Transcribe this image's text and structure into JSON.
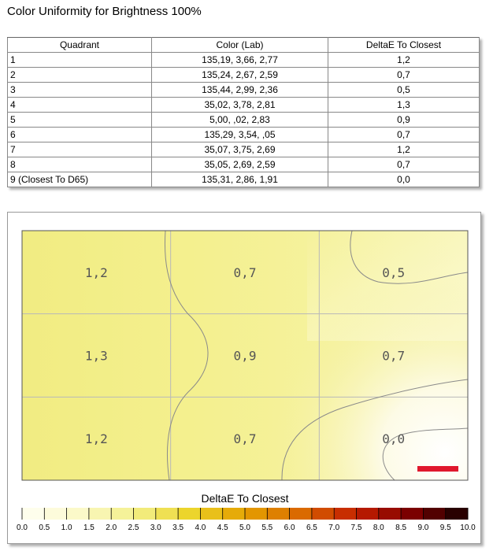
{
  "page_title": "Color Uniformity for Brightness 100%",
  "table": {
    "headers": [
      "Quadrant",
      "Color (Lab)",
      "DeltaE To Closest"
    ],
    "rows": [
      [
        "1",
        "135,19,   3,66,   2,77",
        "1,2"
      ],
      [
        "2",
        "135,24,   2,67,   2,59",
        "0,7"
      ],
      [
        "3",
        "135,44,   2,99,   2,36",
        "0,5"
      ],
      [
        "4",
        "35,02,   3,78,   2,81",
        "1,3"
      ],
      [
        "5",
        "5,00,    ,02,   2,83",
        "0,9"
      ],
      [
        "6",
        "135,29,   3,54,    ,05",
        "0,7"
      ],
      [
        "7",
        "35,07,   3,75,   2,69",
        "1,2"
      ],
      [
        "8",
        "35,05,   2,69,   2,59",
        "0,7"
      ],
      [
        "9 (Closest To D65)",
        "135,31,   2,86,   1,91",
        "0,0"
      ]
    ]
  },
  "chart_data": {
    "type": "heatmap",
    "grid_rows": 3,
    "grid_cols": 3,
    "cell_labels": [
      [
        "1,2",
        "0,7",
        "0,5"
      ],
      [
        "1,3",
        "0,9",
        "0,7"
      ],
      [
        "1,2",
        "0,7",
        "0,0"
      ]
    ],
    "values": [
      [
        1.2,
        0.7,
        0.5
      ],
      [
        1.3,
        0.9,
        0.7
      ],
      [
        1.2,
        0.7,
        0.0
      ]
    ],
    "closest_marker": {
      "row": 2,
      "col": 2,
      "color": "#e0182d"
    },
    "legend": {
      "title": "DeltaE To Closest",
      "range": [
        0.0,
        10.0
      ],
      "tick_labels": [
        "0.0",
        "0.5",
        "1.0",
        "1.5",
        "2.0",
        "2.5",
        "3.0",
        "3.5",
        "4.0",
        "4.5",
        "5.0",
        "5.5",
        "6.0",
        "6.5",
        "7.0",
        "7.5",
        "8.0",
        "8.5",
        "9.0",
        "9.5",
        "10.0"
      ]
    },
    "colors": [
      "#fffff5",
      "#fbf9c9",
      "#f4f08d",
      "#ecd52c",
      "#e5a100",
      "#da6a00",
      "#c41f00",
      "#7b0000",
      "#140000"
    ]
  }
}
